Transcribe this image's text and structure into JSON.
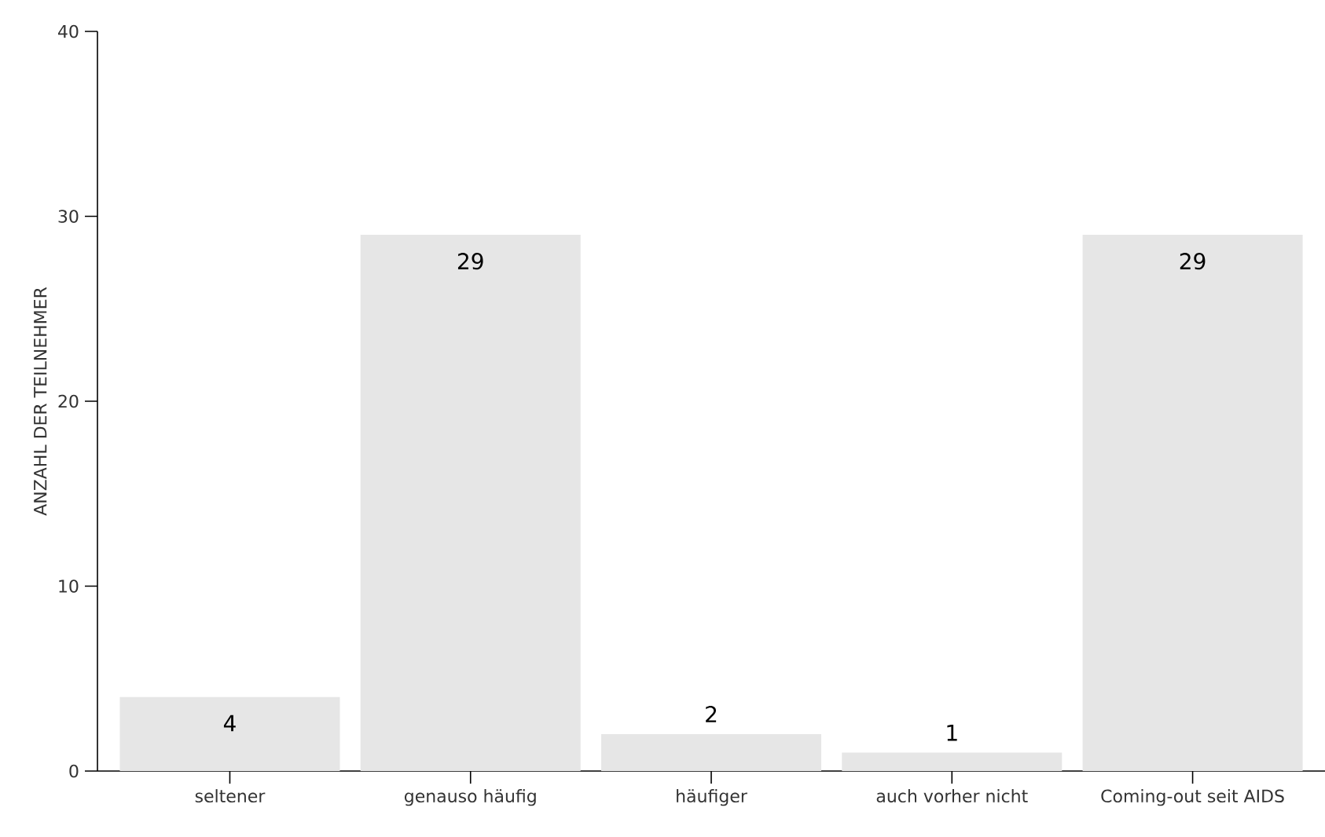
{
  "chart_data": {
    "type": "bar",
    "ylabel": "ANZAHL DER TEILNEHMER",
    "categories": [
      "seltener",
      "genauso häufig",
      "häufiger",
      "auch vorher nicht",
      "Coming-out seit AIDS"
    ],
    "values": [
      4,
      29,
      2,
      1,
      29
    ],
    "color": "#e6e6e6",
    "ylim": [
      0,
      40
    ],
    "yticks": [
      0,
      10,
      20,
      30,
      40
    ],
    "grid": false,
    "data_labels": true
  }
}
